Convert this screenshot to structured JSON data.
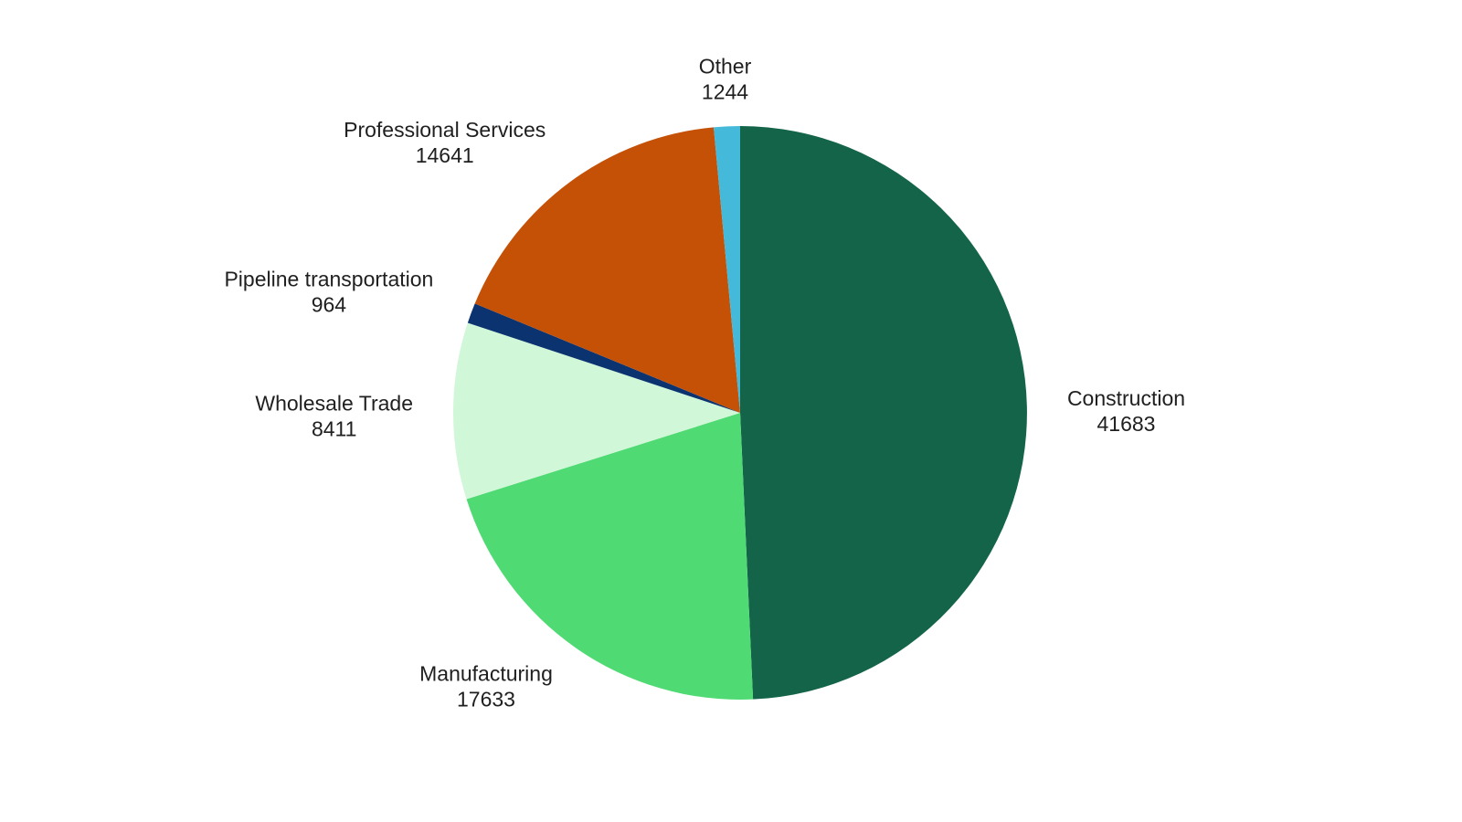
{
  "chart_data": {
    "type": "pie",
    "title": "",
    "start_angle_deg": 0,
    "direction": "clockwise",
    "legend": "none",
    "slices": [
      {
        "label": "Construction",
        "value": 41683,
        "color": "#136449"
      },
      {
        "label": "Manufacturing",
        "value": 17633,
        "color": "#4fda73"
      },
      {
        "label": "Wholesale Trade",
        "value": 8411,
        "color": "#d1f7d9"
      },
      {
        "label": "Pipeline transportation",
        "value": 964,
        "color": "#0a3370"
      },
      {
        "label": "Professional Services",
        "value": 14641,
        "color": "#c55107"
      },
      {
        "label": "Other",
        "value": 1244,
        "color": "#44b9d9"
      }
    ]
  }
}
